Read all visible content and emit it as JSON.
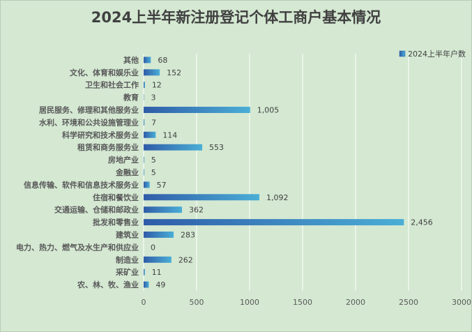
{
  "chart_data": {
    "type": "bar",
    "orientation": "horizontal",
    "title": "2024上半年新注册登记个体工商户基本情况",
    "legend_position": "top-right",
    "grid": "vertical",
    "xlim": [
      0,
      3000
    ],
    "x_ticks": [
      "0",
      "500",
      "1000",
      "1500",
      "2000",
      "2500",
      "3000"
    ],
    "colors": {
      "background": "#d4e8d2",
      "bar_dark": "#2f5ca8",
      "bar_light": "#4aaed6",
      "grid": "#ffffff"
    },
    "categories": [
      "其他",
      "文化、体育和娱乐业",
      "卫生和社会工作",
      "教育",
      "居民服务、修理和其他服务业",
      "水利、环境和公共设施管理业",
      "科学研究和技术服务业",
      "租赁和商务服务业",
      "房地产业",
      "金融业",
      "信息传输、软件和信息技术服务业",
      "住宿和餐饮业",
      "交通运输、仓储和邮政业",
      "批发和零售业",
      "建筑业",
      "电力、热力、燃气及水生产和供应业",
      "制造业",
      "采矿业",
      "农、林、牧、渔业"
    ],
    "series": [
      {
        "name": "2024上半年户数",
        "values": [
          68,
          152,
          12,
          3,
          1005,
          7,
          114,
          553,
          5,
          5,
          57,
          1092,
          362,
          2456,
          283,
          0,
          262,
          11,
          49
        ],
        "labels": [
          "68",
          "152",
          "12",
          "3",
          "1,005",
          "7",
          "114",
          "553",
          "5",
          "5",
          "57",
          "1,092",
          "362",
          "2,456",
          "283",
          "0",
          "262",
          "11",
          "49"
        ]
      }
    ]
  }
}
